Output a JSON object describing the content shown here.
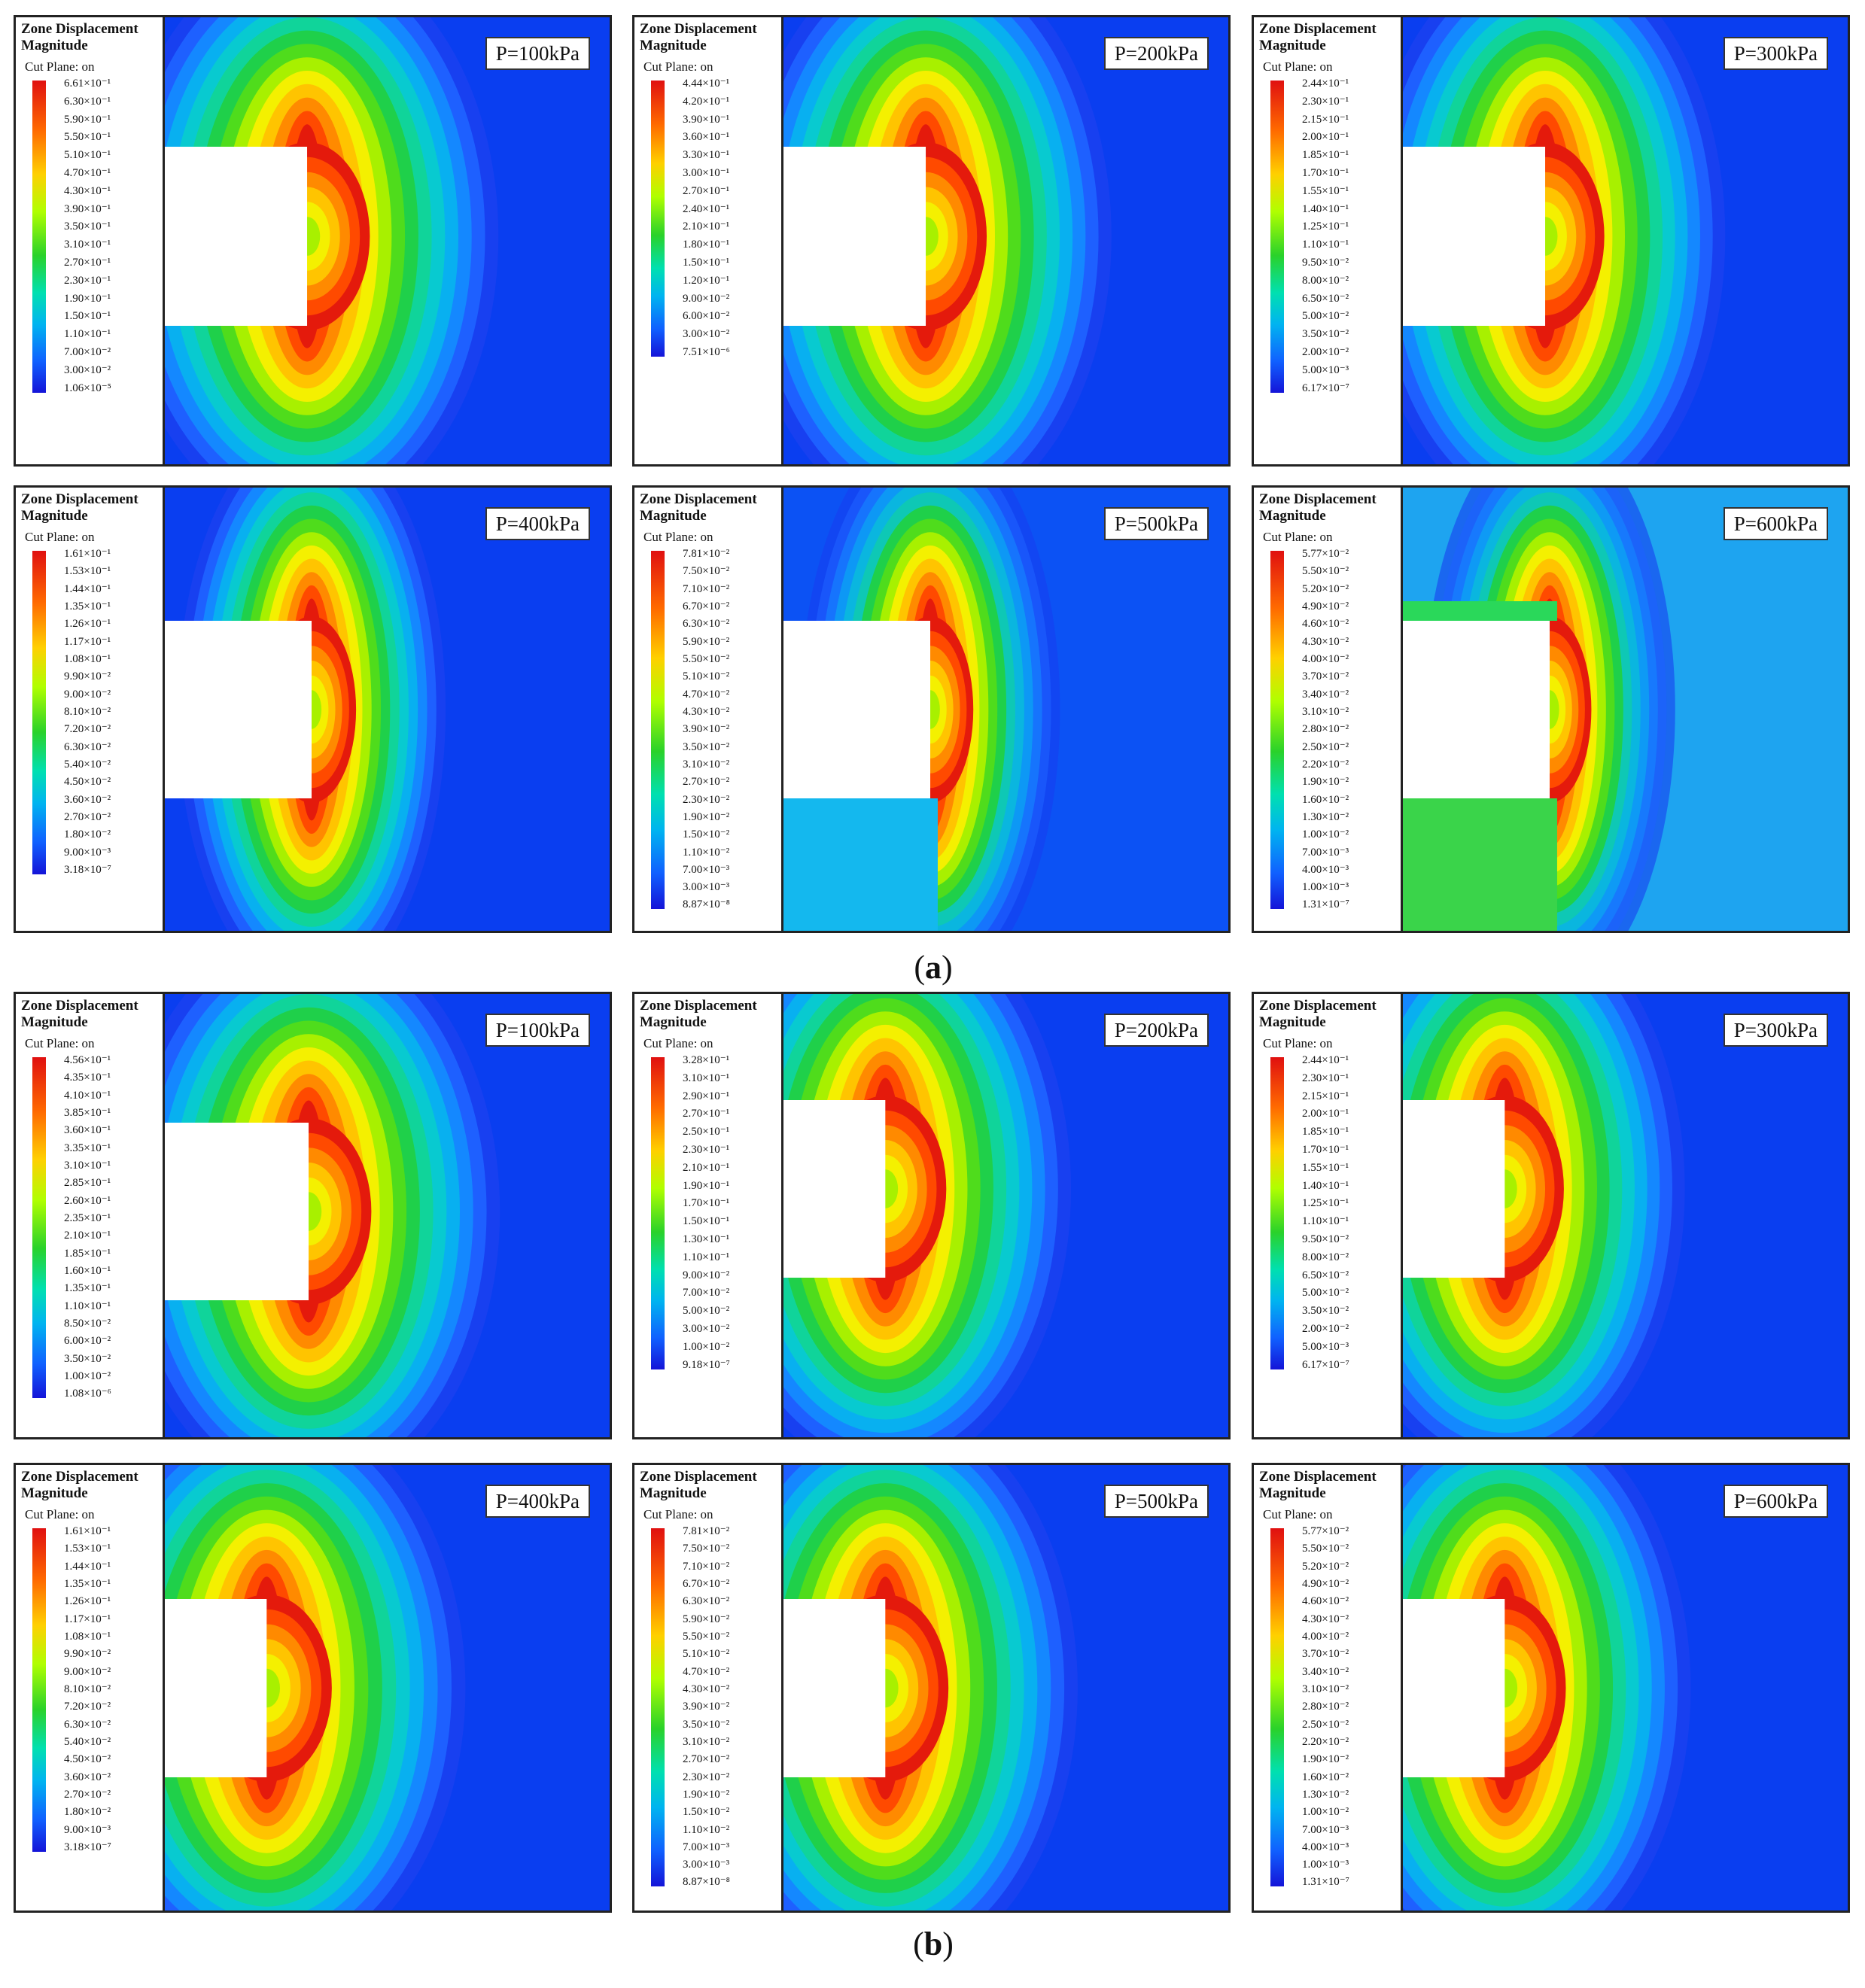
{
  "legend_title": "Zone Displacement Magnitude",
  "legend_cut_plane": "Cut Plane: on",
  "captions": {
    "a": "a",
    "b": "b"
  },
  "panels": [
    {
      "group": "a",
      "pressure": "P=100kPa",
      "ticks": [
        "6.61×10⁻¹",
        "6.30×10⁻¹",
        "5.90×10⁻¹",
        "5.50×10⁻¹",
        "5.10×10⁻¹",
        "4.70×10⁻¹",
        "4.30×10⁻¹",
        "3.90×10⁻¹",
        "3.50×10⁻¹",
        "3.10×10⁻¹",
        "2.70×10⁻¹",
        "2.30×10⁻¹",
        "1.90×10⁻¹",
        "1.50×10⁻¹",
        "1.10×10⁻¹",
        "7.00×10⁻²",
        "3.00×10⁻²",
        "1.06×10⁻⁵"
      ]
    },
    {
      "group": "a",
      "pressure": "P=200kPa",
      "ticks": [
        "4.44×10⁻¹",
        "4.20×10⁻¹",
        "3.90×10⁻¹",
        "3.60×10⁻¹",
        "3.30×10⁻¹",
        "3.00×10⁻¹",
        "2.70×10⁻¹",
        "2.40×10⁻¹",
        "2.10×10⁻¹",
        "1.80×10⁻¹",
        "1.50×10⁻¹",
        "1.20×10⁻¹",
        "9.00×10⁻²",
        "6.00×10⁻²",
        "3.00×10⁻²",
        "7.51×10⁻⁶"
      ]
    },
    {
      "group": "a",
      "pressure": "P=300kPa",
      "ticks": [
        "2.44×10⁻¹",
        "2.30×10⁻¹",
        "2.15×10⁻¹",
        "2.00×10⁻¹",
        "1.85×10⁻¹",
        "1.70×10⁻¹",
        "1.55×10⁻¹",
        "1.40×10⁻¹",
        "1.25×10⁻¹",
        "1.10×10⁻¹",
        "9.50×10⁻²",
        "8.00×10⁻²",
        "6.50×10⁻²",
        "5.00×10⁻²",
        "3.50×10⁻²",
        "2.00×10⁻²",
        "5.00×10⁻³",
        "6.17×10⁻⁷"
      ]
    },
    {
      "group": "a",
      "pressure": "P=400kPa",
      "ticks": [
        "1.61×10⁻¹",
        "1.53×10⁻¹",
        "1.44×10⁻¹",
        "1.35×10⁻¹",
        "1.26×10⁻¹",
        "1.17×10⁻¹",
        "1.08×10⁻¹",
        "9.90×10⁻²",
        "9.00×10⁻²",
        "8.10×10⁻²",
        "7.20×10⁻²",
        "6.30×10⁻²",
        "5.40×10⁻²",
        "4.50×10⁻²",
        "3.60×10⁻²",
        "2.70×10⁻²",
        "1.80×10⁻²",
        "9.00×10⁻³",
        "3.18×10⁻⁷"
      ]
    },
    {
      "group": "a",
      "pressure": "P=500kPa",
      "ticks": [
        "7.81×10⁻²",
        "7.50×10⁻²",
        "7.10×10⁻²",
        "6.70×10⁻²",
        "6.30×10⁻²",
        "5.90×10⁻²",
        "5.50×10⁻²",
        "5.10×10⁻²",
        "4.70×10⁻²",
        "4.30×10⁻²",
        "3.90×10⁻²",
        "3.50×10⁻²",
        "3.10×10⁻²",
        "2.70×10⁻²",
        "2.30×10⁻²",
        "1.90×10⁻²",
        "1.50×10⁻²",
        "1.10×10⁻²",
        "7.00×10⁻³",
        "3.00×10⁻³",
        "8.87×10⁻⁸"
      ]
    },
    {
      "group": "a",
      "pressure": "P=600kPa",
      "ticks": [
        "5.77×10⁻²",
        "5.50×10⁻²",
        "5.20×10⁻²",
        "4.90×10⁻²",
        "4.60×10⁻²",
        "4.30×10⁻²",
        "4.00×10⁻²",
        "3.70×10⁻²",
        "3.40×10⁻²",
        "3.10×10⁻²",
        "2.80×10⁻²",
        "2.50×10⁻²",
        "2.20×10⁻²",
        "1.90×10⁻²",
        "1.60×10⁻²",
        "1.30×10⁻²",
        "1.00×10⁻²",
        "7.00×10⁻³",
        "4.00×10⁻³",
        "1.00×10⁻³",
        "1.31×10⁻⁷"
      ]
    },
    {
      "group": "b",
      "pressure": "P=100kPa",
      "ticks": [
        "4.56×10⁻¹",
        "4.35×10⁻¹",
        "4.10×10⁻¹",
        "3.85×10⁻¹",
        "3.60×10⁻¹",
        "3.35×10⁻¹",
        "3.10×10⁻¹",
        "2.85×10⁻¹",
        "2.60×10⁻¹",
        "2.35×10⁻¹",
        "2.10×10⁻¹",
        "1.85×10⁻¹",
        "1.60×10⁻¹",
        "1.35×10⁻¹",
        "1.10×10⁻¹",
        "8.50×10⁻²",
        "6.00×10⁻²",
        "3.50×10⁻²",
        "1.00×10⁻²",
        "1.08×10⁻⁶"
      ]
    },
    {
      "group": "b",
      "pressure": "P=200kPa",
      "ticks": [
        "3.28×10⁻¹",
        "3.10×10⁻¹",
        "2.90×10⁻¹",
        "2.70×10⁻¹",
        "2.50×10⁻¹",
        "2.30×10⁻¹",
        "2.10×10⁻¹",
        "1.90×10⁻¹",
        "1.70×10⁻¹",
        "1.50×10⁻¹",
        "1.30×10⁻¹",
        "1.10×10⁻¹",
        "9.00×10⁻²",
        "7.00×10⁻²",
        "5.00×10⁻²",
        "3.00×10⁻²",
        "1.00×10⁻²",
        "9.18×10⁻⁷"
      ]
    },
    {
      "group": "b",
      "pressure": "P=300kPa",
      "ticks": [
        "2.44×10⁻¹",
        "2.30×10⁻¹",
        "2.15×10⁻¹",
        "2.00×10⁻¹",
        "1.85×10⁻¹",
        "1.70×10⁻¹",
        "1.55×10⁻¹",
        "1.40×10⁻¹",
        "1.25×10⁻¹",
        "1.10×10⁻¹",
        "9.50×10⁻²",
        "8.00×10⁻²",
        "6.50×10⁻²",
        "5.00×10⁻²",
        "3.50×10⁻²",
        "2.00×10⁻²",
        "5.00×10⁻³",
        "6.17×10⁻⁷"
      ]
    },
    {
      "group": "b",
      "pressure": "P=400kPa",
      "ticks": [
        "1.61×10⁻¹",
        "1.53×10⁻¹",
        "1.44×10⁻¹",
        "1.35×10⁻¹",
        "1.26×10⁻¹",
        "1.17×10⁻¹",
        "1.08×10⁻¹",
        "9.90×10⁻²",
        "9.00×10⁻²",
        "8.10×10⁻²",
        "7.20×10⁻²",
        "6.30×10⁻²",
        "5.40×10⁻²",
        "4.50×10⁻²",
        "3.60×10⁻²",
        "2.70×10⁻²",
        "1.80×10⁻²",
        "9.00×10⁻³",
        "3.18×10⁻⁷"
      ]
    },
    {
      "group": "b",
      "pressure": "P=500kPa",
      "ticks": [
        "7.81×10⁻²",
        "7.50×10⁻²",
        "7.10×10⁻²",
        "6.70×10⁻²",
        "6.30×10⁻²",
        "5.90×10⁻²",
        "5.50×10⁻²",
        "5.10×10⁻²",
        "4.70×10⁻²",
        "4.30×10⁻²",
        "3.90×10⁻²",
        "3.50×10⁻²",
        "3.10×10⁻²",
        "2.70×10⁻²",
        "2.30×10⁻²",
        "1.90×10⁻²",
        "1.50×10⁻²",
        "1.10×10⁻²",
        "7.00×10⁻³",
        "3.00×10⁻³",
        "8.87×10⁻⁸"
      ]
    },
    {
      "group": "b",
      "pressure": "P=600kPa",
      "ticks": [
        "5.77×10⁻²",
        "5.50×10⁻²",
        "5.20×10⁻²",
        "4.90×10⁻²",
        "4.60×10⁻²",
        "4.30×10⁻²",
        "4.00×10⁻²",
        "3.70×10⁻²",
        "3.40×10⁻²",
        "3.10×10⁻²",
        "2.80×10⁻²",
        "2.50×10⁻²",
        "2.20×10⁻²",
        "1.90×10⁻²",
        "1.60×10⁻²",
        "1.30×10⁻²",
        "1.00×10⁻²",
        "7.00×10⁻³",
        "4.00×10⁻³",
        "1.00×10⁻³",
        "1.31×10⁻⁷"
      ]
    }
  ]
}
